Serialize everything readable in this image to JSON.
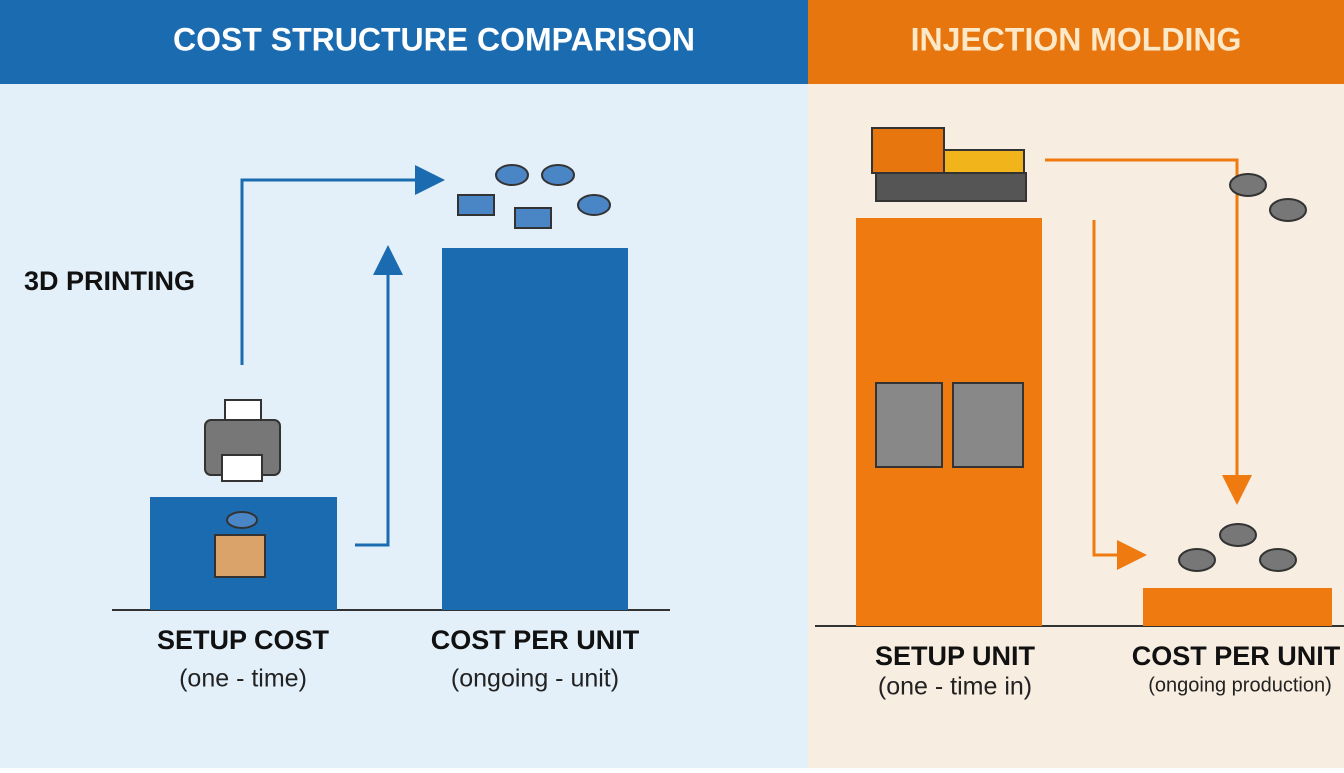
{
  "header": {
    "title": "COST STRUCTURE COMPARISON",
    "right_title": "INJECTION MOLDING"
  },
  "left_panel": {
    "label": "3D PRINTING",
    "columns": [
      {
        "label": "SETUP COST",
        "sublabel": "(one - time)"
      },
      {
        "label": "COST PER UNIT",
        "sublabel": "(ongoing - unit)"
      }
    ]
  },
  "right_panel": {
    "columns": [
      {
        "label": "SETUP UNIT",
        "sublabel": "(one - time in)"
      },
      {
        "label": "COST PER UNIT",
        "sublabel": "(ongoing production)"
      }
    ]
  }
}
